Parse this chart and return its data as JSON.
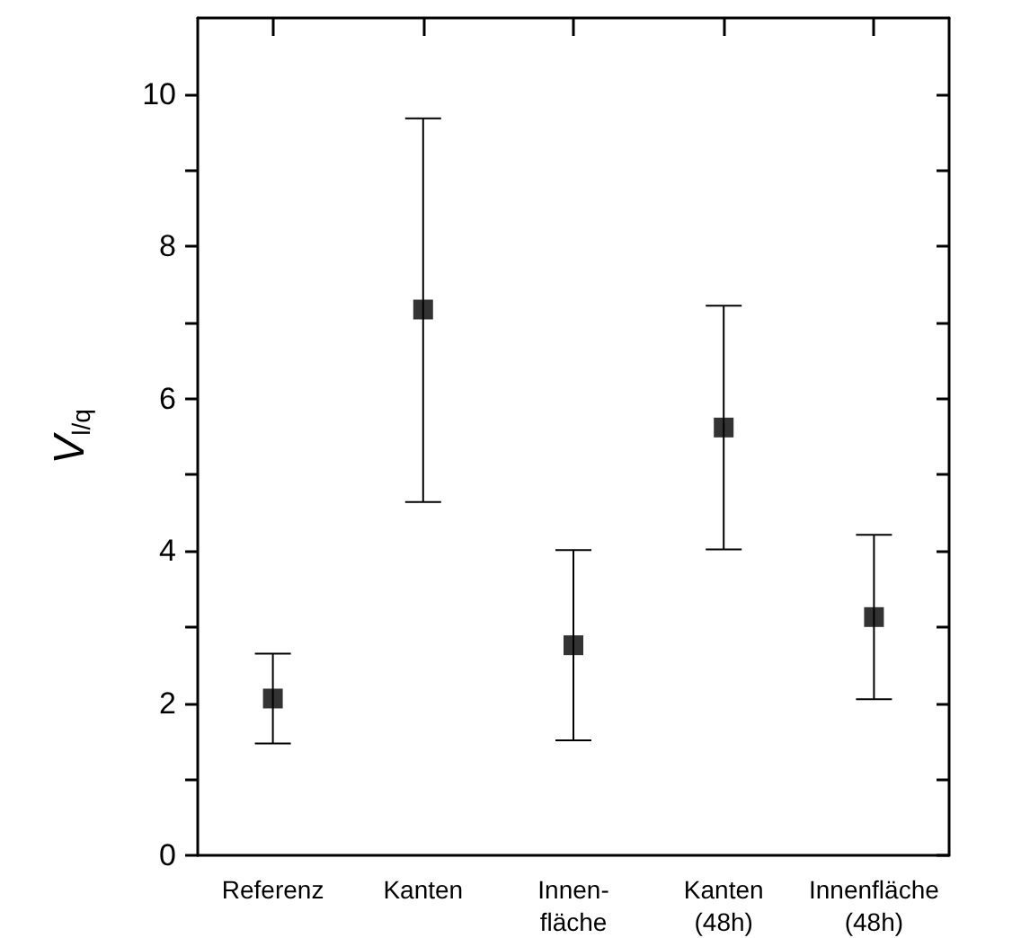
{
  "chart_data": {
    "type": "scatter",
    "ylabel": "V$_{l/q}$",
    "categories": [
      "Referenz",
      "Kanten",
      "Innen-\nfläche",
      "Kanten\n(48h)",
      "Innenfläche\n(48h)"
    ],
    "series": [
      {
        "color": "#000000",
        "values": [
          2.06,
          7.17,
          2.76,
          5.62,
          3.13
        ],
        "errors": [
          [
            1.47,
            2.65
          ],
          [
            4.64,
            9.68
          ],
          [
            1.51,
            4.01
          ],
          [
            4.02,
            7.22
          ],
          [
            2.05,
            4.21
          ]
        ]
      }
    ],
    "ylim": [
      0,
      11
    ],
    "yticks": [
      0,
      {
        "value": 1,
        "label": null
      },
      2,
      {
        "value": 3,
        "label": null
      },
      4,
      {
        "value": 5,
        "label": null
      },
      6,
      {
        "value": 7,
        "label": null
      },
      8,
      {
        "value": 9,
        "label": null
      },
      10
    ],
    "marker": "square",
    "grid": false
  }
}
